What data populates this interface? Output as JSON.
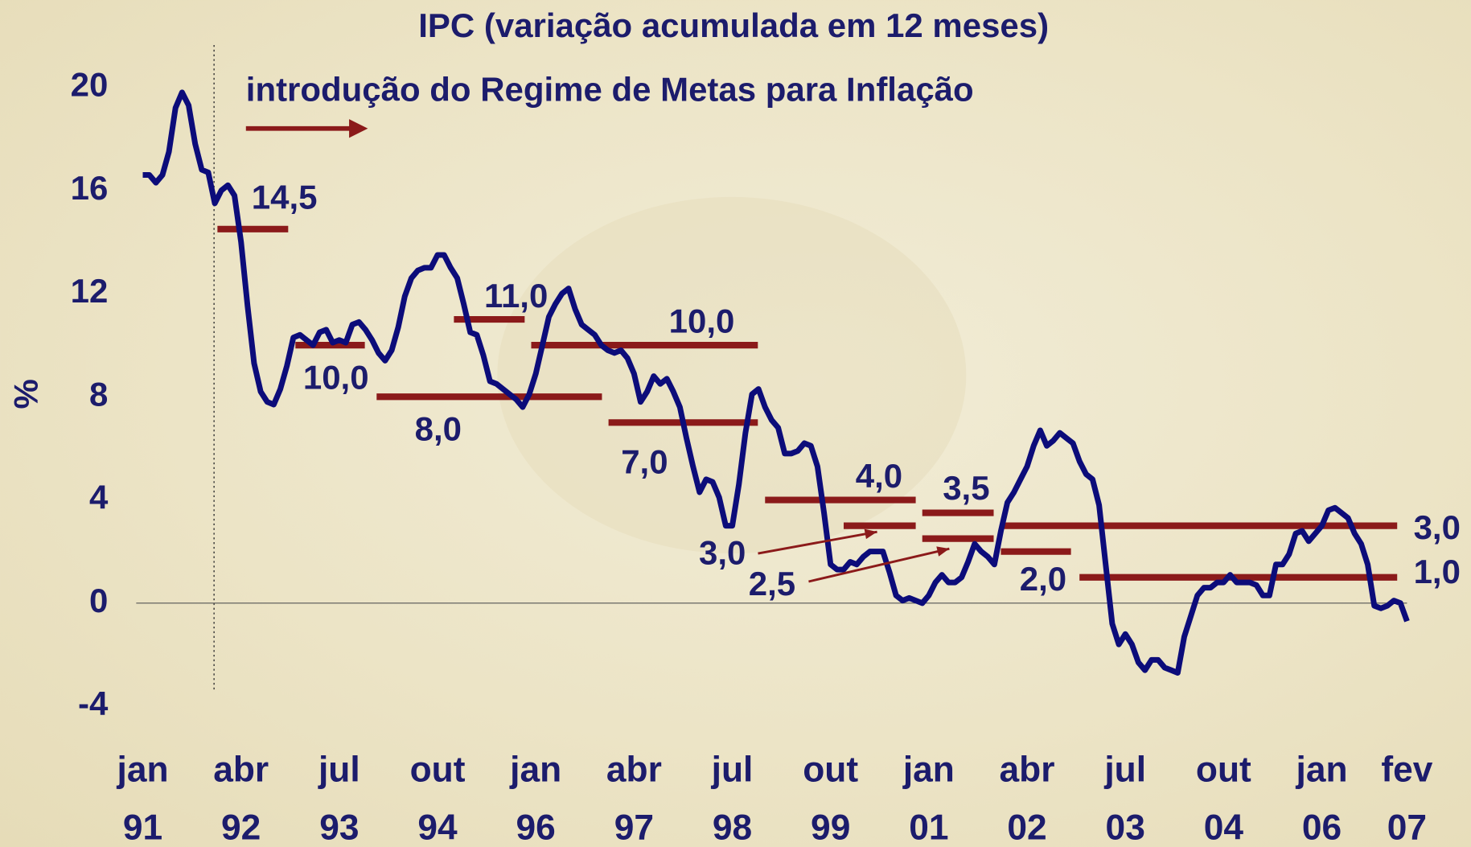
{
  "chart_data": {
    "type": "line",
    "title": "IPC (variação acumulada em 12 meses)",
    "annotation": "introdução do Regime de Metas para Inflação",
    "y_label": "%",
    "categories": [
      "jan 91",
      null,
      null,
      null,
      null,
      null,
      null,
      null,
      null,
      null,
      null,
      null,
      null,
      null,
      null,
      "abr 92",
      null,
      null,
      null,
      null,
      null,
      null,
      null,
      null,
      null,
      null,
      null,
      null,
      null,
      null,
      "jul 93",
      null,
      null,
      null,
      null,
      null,
      null,
      null,
      null,
      null,
      null,
      null,
      null,
      null,
      null,
      "out 94",
      null,
      null,
      null,
      null,
      null,
      null,
      null,
      null,
      null,
      null,
      null,
      null,
      null,
      null,
      "jan 96",
      null,
      null,
      null,
      null,
      null,
      null,
      null,
      null,
      null,
      null,
      null,
      null,
      null,
      null,
      "abr 97",
      null,
      null,
      null,
      null,
      null,
      null,
      null,
      null,
      null,
      null,
      null,
      null,
      null,
      null,
      "jul 98",
      null,
      null,
      null,
      null,
      null,
      null,
      null,
      null,
      null,
      null,
      null,
      null,
      null,
      null,
      "out 99",
      null,
      null,
      null,
      null,
      null,
      null,
      null,
      null,
      null,
      null,
      null,
      null,
      null,
      null,
      "jan 01",
      null,
      null,
      null,
      null,
      null,
      null,
      null,
      null,
      null,
      null,
      null,
      null,
      null,
      null,
      "abr 02",
      null,
      null,
      null,
      null,
      null,
      null,
      null,
      null,
      null,
      null,
      null,
      null,
      null,
      null,
      "jul 03",
      null,
      null,
      null,
      null,
      null,
      null,
      null,
      null,
      null,
      null,
      null,
      null,
      null,
      null,
      "out 04",
      null,
      null,
      null,
      null,
      null,
      null,
      null,
      null,
      null,
      null,
      null,
      null,
      null,
      null,
      "jan 06",
      null,
      null,
      null,
      null,
      null,
      null,
      null,
      null,
      null,
      null,
      null,
      null,
      "fev 07"
    ],
    "series": [
      {
        "name": "IPC",
        "color": "#0c0c7a",
        "values": [
          16.6,
          16.6,
          16.3,
          16.6,
          17.5,
          19.2,
          19.8,
          19.3,
          17.8,
          16.8,
          16.7,
          15.5,
          16,
          16.2,
          15.8,
          14,
          11.5,
          9.3,
          8.2,
          7.8,
          7.7,
          8.3,
          9.2,
          10.3,
          10.4,
          10.2,
          10,
          10.5,
          10.6,
          10.1,
          10.2,
          10.1,
          10.8,
          10.9,
          10.6,
          10.2,
          9.7,
          9.4,
          9.8,
          10.7,
          11.9,
          12.6,
          12.9,
          13,
          13,
          13.5,
          13.5,
          13,
          12.6,
          11.6,
          10.5,
          10.4,
          9.6,
          8.6,
          8.5,
          8.3,
          8.1,
          7.9,
          7.6,
          8.1,
          8.9,
          10,
          11.1,
          11.6,
          12,
          12.2,
          11.4,
          10.8,
          10.6,
          10.4,
          10,
          9.8,
          9.7,
          9.8,
          9.5,
          8.9,
          7.8,
          8.2,
          8.8,
          8.5,
          8.7,
          8.2,
          7.6,
          6.4,
          5.3,
          4.3,
          4.8,
          4.7,
          4.1,
          3,
          3,
          4.6,
          6.6,
          8.1,
          8.3,
          7.6,
          7.1,
          6.8,
          5.8,
          5.8,
          5.9,
          6.2,
          6.1,
          5.3,
          3.5,
          1.5,
          1.3,
          1.3,
          1.6,
          1.5,
          1.8,
          2,
          2,
          2,
          1.2,
          0.3,
          0.1,
          0.2,
          0.1,
          0,
          0.3,
          0.8,
          1.1,
          0.8,
          0.8,
          1,
          1.6,
          2.3,
          2,
          1.8,
          1.5,
          2.8,
          3.9,
          4.3,
          4.8,
          5.3,
          6.1,
          6.7,
          6.1,
          6.3,
          6.6,
          6.4,
          6.2,
          5.5,
          5,
          4.8,
          3.8,
          1.5,
          -0.8,
          -1.6,
          -1.2,
          -1.6,
          -2.3,
          -2.6,
          -2.2,
          -2.2,
          -2.5,
          -2.6,
          -2.7,
          -1.3,
          -0.5,
          0.3,
          0.6,
          0.6,
          0.8,
          0.8,
          1.1,
          0.8,
          0.8,
          0.8,
          0.7,
          0.3,
          0.3,
          1.5,
          1.5,
          1.9,
          2.7,
          2.8,
          2.4,
          2.7,
          3,
          3.6,
          3.7,
          3.5,
          3.3,
          2.7,
          2.3,
          1.5,
          -0.1,
          -0.2,
          -0.1,
          0.1,
          0,
          -0.7
        ]
      }
    ],
    "targets_color": "#8b1a1a",
    "targets": [
      {
        "value": 14.5,
        "label": "14,5",
        "from": 11.4,
        "to": 22.2
      },
      {
        "value": 10,
        "label": "10,0",
        "from": 23.3,
        "to": 33.9
      },
      {
        "value": 8,
        "label": "8,0",
        "from": 35.7,
        "to": 70.1
      },
      {
        "value": 11,
        "label": "11,0",
        "from": 47.5,
        "to": 58.3
      },
      {
        "value": 10,
        "label": "10,0",
        "from": 59.3,
        "to": 93.9
      },
      {
        "value": 7,
        "label": "7,0",
        "from": 71.1,
        "to": 93.9
      },
      {
        "value": 4,
        "label": "4,0",
        "from": 95,
        "to": 118
      },
      {
        "value": 3,
        "label": "3,0",
        "from": 107,
        "to": 118
      },
      {
        "value": 3.5,
        "label": "3,5",
        "from": 119,
        "to": 129.9
      },
      {
        "value": 2.5,
        "label": "2,5",
        "from": 119,
        "to": 129.9
      },
      {
        "value": 2,
        "label": "2,0",
        "from": 131,
        "to": 141.7
      },
      {
        "value": 3,
        "label": "3,0",
        "from": 131,
        "to": 191.5
      },
      {
        "value": 1,
        "label": "1,0",
        "from": 143,
        "to": 191.5
      }
    ],
    "ylim": [
      -4,
      20
    ],
    "yticks": [
      -4,
      0,
      4,
      8,
      12,
      16,
      20
    ]
  }
}
